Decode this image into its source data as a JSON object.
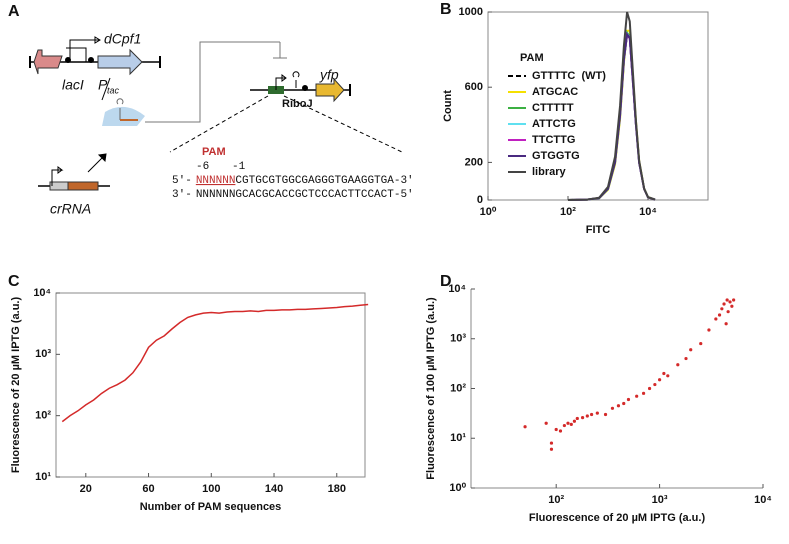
{
  "diagram": {
    "label": "A",
    "laci": "lacI",
    "p": "P",
    "tac": "tac",
    "dcpf1": "dCpf1",
    "crrna": "crRNA",
    "yfp": "yfp",
    "riboj": "RiboJ",
    "pam": "PAM",
    "m6": "-6",
    "m1": "-1",
    "top_5": "5'-",
    "top_n": "NNNNNN",
    "top_seq": "CGTGCGTGGCGAGGGTGAAGGTGA",
    "top_3": "-3'",
    "bot_3": "3'-",
    "bot_seq": "NNNNNNGCACGCACCGCTCCCACTTCCACT",
    "bot_5": "-5'"
  },
  "chart_data": [
    {
      "type": "line",
      "label": "B",
      "ylabel": "Count",
      "xlabel": "FITC",
      "xlog": true,
      "frame": true,
      "legend_title": "PAM",
      "xlim": [
        1,
        316228
      ],
      "xticks": [
        {
          "value": 1,
          "label": "10⁰"
        },
        {
          "value": 100,
          "label": "10²"
        },
        {
          "value": 10000,
          "label": "10⁴"
        }
      ],
      "ylim": [
        0,
        1000
      ],
      "yticks": [
        0,
        200,
        600,
        1000
      ],
      "x": [
        100,
        300,
        600,
        1000,
        1500,
        2000,
        2500,
        3000,
        3500,
        4000,
        5000,
        6000,
        8000,
        10000,
        15000
      ],
      "series": [
        {
          "name": "GTTTTC  (WT)",
          "color": "#000000",
          "linestyle": "dashed",
          "values": [
            0,
            2,
            10,
            60,
            200,
            440,
            740,
            880,
            860,
            690,
            400,
            200,
            60,
            15,
            2
          ]
        },
        {
          "name": "ATGCAC",
          "color": "#f5e000",
          "values": [
            0,
            2,
            9,
            55,
            190,
            430,
            730,
            900,
            900,
            720,
            420,
            210,
            62,
            16,
            2
          ]
        },
        {
          "name": "CTTTTT",
          "color": "#3cb043",
          "values": [
            0,
            2,
            10,
            58,
            198,
            445,
            745,
            890,
            870,
            700,
            405,
            202,
            60,
            15,
            2
          ]
        },
        {
          "name": "ATTCTG",
          "color": "#5fe0f0",
          "values": [
            0,
            2,
            10,
            60,
            205,
            450,
            750,
            885,
            865,
            695,
            402,
            201,
            60,
            15,
            2
          ]
        },
        {
          "name": "TTCTTG",
          "color": "#c020c0",
          "values": [
            0,
            2,
            11,
            62,
            210,
            455,
            755,
            880,
            860,
            690,
            400,
            200,
            59,
            14,
            2
          ]
        },
        {
          "name": "GTGGTG",
          "color": "#4a2a80",
          "values": [
            0,
            2,
            10,
            60,
            200,
            448,
            748,
            882,
            862,
            692,
            401,
            200,
            60,
            15,
            2
          ]
        },
        {
          "name": "library",
          "color": "#444444",
          "values": [
            0,
            2,
            12,
            70,
            230,
            500,
            820,
            1000,
            950,
            750,
            420,
            210,
            60,
            15,
            2
          ]
        }
      ]
    },
    {
      "type": "line",
      "label": "C",
      "xlabel": "Number of PAM sequences",
      "ylabel": "Fluorescence  of 20 µM IPTG (a.u.)",
      "ylog": true,
      "frame": true,
      "color": "#d42a2a",
      "xlim": [
        1,
        198
      ],
      "xticks": [
        20,
        60,
        100,
        140,
        180
      ],
      "ylim": [
        10,
        10000
      ],
      "yticks": [
        {
          "value": 10,
          "label": "10¹"
        },
        {
          "value": 100,
          "label": "10²"
        },
        {
          "value": 1000,
          "label": "10³"
        },
        {
          "value": 10000,
          "label": "10⁴"
        }
      ],
      "x": [
        5,
        10,
        15,
        20,
        25,
        30,
        35,
        40,
        45,
        50,
        55,
        60,
        65,
        70,
        75,
        80,
        85,
        90,
        95,
        100,
        105,
        110,
        115,
        120,
        125,
        130,
        135,
        140,
        145,
        150,
        155,
        160,
        165,
        170,
        175,
        180,
        185,
        190,
        195,
        200
      ],
      "values": [
        80,
        100,
        120,
        150,
        180,
        230,
        280,
        320,
        380,
        500,
        750,
        1300,
        1700,
        2000,
        2600,
        3300,
        4000,
        4400,
        4700,
        4800,
        4700,
        4900,
        5000,
        5000,
        5100,
        5000,
        5200,
        5200,
        5300,
        5300,
        5400,
        5400,
        5500,
        5600,
        5700,
        5800,
        6000,
        6100,
        6300,
        6500
      ]
    },
    {
      "type": "scatter",
      "label": "D",
      "xlabel": "Fluorescence  of 20 µM IPTG (a.u.)",
      "ylabel": "Fluorescence  of 100 µM IPTG (a.u.)",
      "xlog": true,
      "ylog": true,
      "frame": false,
      "color": "#d42a2a",
      "xlim": [
        15,
        10000
      ],
      "xticks": [
        {
          "value": 100,
          "label": "10²"
        },
        {
          "value": 1000,
          "label": "10³"
        },
        {
          "value": 10000,
          "label": "10⁴"
        }
      ],
      "ylim": [
        1,
        10000
      ],
      "yticks": [
        {
          "value": 1,
          "label": "10⁰"
        },
        {
          "value": 10,
          "label": "10¹"
        },
        {
          "value": 100,
          "label": "10²"
        },
        {
          "value": 1000,
          "label": "10³"
        },
        {
          "value": 10000,
          "label": "10⁴"
        }
      ],
      "x": [
        50,
        80,
        90,
        90,
        100,
        110,
        120,
        130,
        140,
        150,
        160,
        180,
        200,
        220,
        250,
        300,
        350,
        400,
        450,
        500,
        600,
        700,
        800,
        900,
        1000,
        1100,
        1200,
        1500,
        1800,
        2000,
        2500,
        3000,
        3500,
        4000,
        4200,
        4500,
        4800,
        5000,
        5200,
        4600,
        3800,
        4400
      ],
      "values": [
        17,
        20,
        8,
        6,
        15,
        14,
        18,
        20,
        19,
        22,
        25,
        26,
        28,
        30,
        32,
        30,
        40,
        45,
        50,
        60,
        70,
        80,
        100,
        120,
        150,
        200,
        180,
        300,
        400,
        600,
        800,
        1500,
        2500,
        4000,
        5000,
        6000,
        5500,
        4500,
        6000,
        3500,
        3000,
        2000
      ]
    }
  ]
}
